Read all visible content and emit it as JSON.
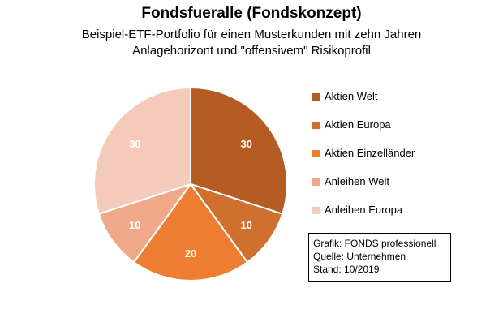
{
  "chart_data": {
    "type": "pie",
    "title": "Fondsfueralle (Fondskonzept)",
    "subtitle_lines": [
      "Beispiel-ETF-Portfolio für einen Musterkunden mit zehn Jahren",
      "Anlagehorizont und \"offensivem\" Risikoprofil"
    ],
    "categories": [
      "Aktien Welt",
      "Aktien Europa",
      "Aktien Einzelländer",
      "Anleihen Welt",
      "Anleihen Europa"
    ],
    "values": [
      30,
      10,
      20,
      10,
      30
    ],
    "data_labels": [
      "30",
      "10",
      "20",
      "10",
      "30"
    ],
    "colors": [
      "#B45C24",
      "#D0702E",
      "#ED7D31",
      "#EFA888",
      "#F4CBBA"
    ],
    "label_color": "#ffffff",
    "start_angle_deg": 0,
    "direction": "clockwise",
    "legend_position": "right"
  },
  "source_box": {
    "lines": [
      "Grafik: FONDS professionell",
      "Quelle: Unternehmen",
      "Stand: 10/2019"
    ]
  }
}
